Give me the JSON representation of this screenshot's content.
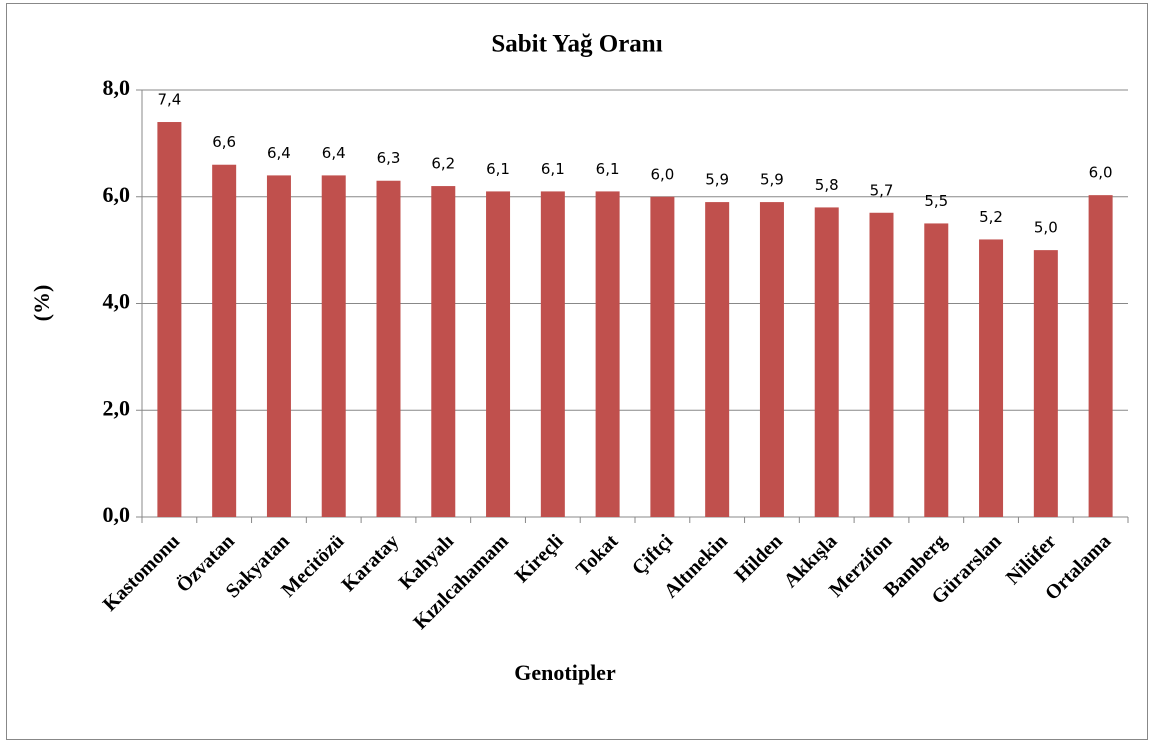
{
  "chart_data": {
    "type": "bar",
    "title": "Sabit Yağ Oranı",
    "x_label": "Genotipler",
    "y_label": "(%)",
    "categories": [
      "Kastomonu",
      "Özvatan",
      "Sakyatan",
      "Mecitözü",
      "Karatay",
      "Kahyalı",
      "Kızılcahamam",
      "Kireçli",
      "Tokat",
      "Çiftçi",
      "Altınekin",
      "Hilden",
      "Akkışla",
      "Merzifon",
      "Bamberg",
      "Gürarslan",
      "Nilüfer",
      "Ortalama"
    ],
    "values": [
      7.4,
      6.6,
      6.4,
      6.4,
      6.3,
      6.2,
      6.1,
      6.1,
      6.1,
      6.0,
      5.9,
      5.9,
      5.8,
      5.7,
      5.5,
      5.2,
      5.0,
      6.03
    ],
    "value_labels": [
      "7,4",
      "6,6",
      "6,4",
      "6,4",
      "6,3",
      "6,2",
      "6,1",
      "6,1",
      "6,1",
      "6,0",
      "5,9",
      "5,9",
      "5,8",
      "5,7",
      "5,5",
      "5,2",
      "5,0",
      "6,0"
    ],
    "color": "#c0504d",
    "ylim": [
      0,
      8
    ],
    "yticks": [
      {
        "value": 0,
        "label": "0,0"
      },
      {
        "value": 2,
        "label": "2,0"
      },
      {
        "value": 4,
        "label": "4,0"
      },
      {
        "value": 6,
        "label": "6,0"
      },
      {
        "value": 8,
        "label": "8,0"
      }
    ],
    "grid": true
  }
}
